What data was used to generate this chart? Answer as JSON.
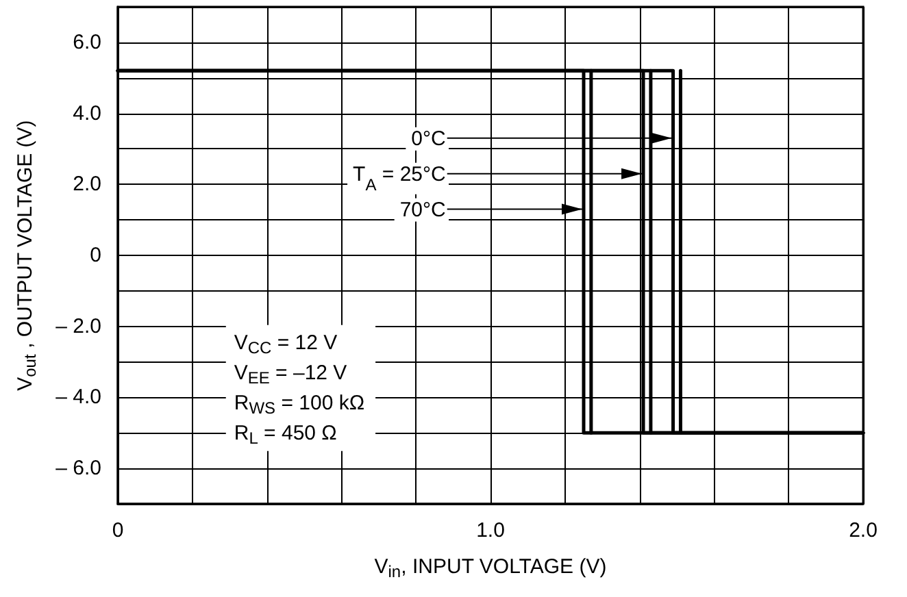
{
  "chart_data": {
    "type": "line",
    "xlabel": "V$_{in}$, INPUT VOLTAGE (V)",
    "ylabel": "V$_{out}$ , OUTPUT VOLTAGE (V)",
    "xlim": [
      0,
      2.0
    ],
    "ylim": [
      -7,
      7
    ],
    "xticks": [
      0,
      {
        "value": 0.2,
        "label": null
      },
      {
        "value": 0.4,
        "label": null
      },
      {
        "value": 0.6,
        "label": null
      },
      {
        "value": 0.8,
        "label": null
      },
      {
        "value": 1.0,
        "label": "1.0"
      },
      {
        "value": 1.2,
        "label": null
      },
      {
        "value": 1.4,
        "label": null
      },
      {
        "value": 1.6,
        "label": null
      },
      {
        "value": 1.8,
        "label": null
      },
      {
        "value": 2.0,
        "label": "2.0"
      }
    ],
    "yticks": [
      {
        "value": -6,
        "label": "– 6.0"
      },
      {
        "value": -5,
        "label": null
      },
      {
        "value": -4,
        "label": "– 4.0"
      },
      {
        "value": -3,
        "label": null
      },
      {
        "value": -2,
        "label": "– 2.0"
      },
      {
        "value": -1,
        "label": null
      },
      0,
      {
        "value": 1,
        "label": null
      },
      {
        "value": 2,
        "label": "2.0"
      },
      {
        "value": 3,
        "label": null
      },
      {
        "value": 4,
        "label": "4.0"
      },
      {
        "value": 5,
        "label": null
      },
      {
        "value": 6,
        "label": "6.0"
      }
    ],
    "grid": true,
    "marker": "none",
    "line_style": "solid",
    "series": [
      {
        "color": "#000000",
        "x": [
          0,
          1.49,
          1.49,
          2.0
        ],
        "values": [
          5.2,
          5.2,
          -5.0,
          -5.0
        ]
      },
      {
        "color": "#000000",
        "x": [
          0,
          1.41,
          1.41,
          2.0
        ],
        "values": [
          5.2,
          5.2,
          -5.0,
          -5.0
        ]
      },
      {
        "color": "#000000",
        "x": [
          0,
          1.25,
          1.25,
          2.0
        ],
        "values": [
          5.2,
          5.2,
          -5.0,
          -5.0
        ]
      },
      {
        "color": "#000000",
        "x": [
          1.51,
          1.51
        ],
        "values": [
          -5.0,
          5.2
        ]
      },
      {
        "color": "#000000",
        "x": [
          1.43,
          1.43
        ],
        "values": [
          -5.0,
          5.2
        ]
      },
      {
        "color": "#000000",
        "x": [
          1.27,
          1.27
        ],
        "values": [
          -5.0,
          5.2
        ]
      }
    ],
    "annotations": [
      {
        "text": "0°C",
        "x": 1.49,
        "y": 3.3
      },
      {
        "text": "T$_{A}$ = 25°C",
        "x": 1.41,
        "y": 2.3
      },
      {
        "text": "70°C",
        "x": 1.25,
        "y": 1.3
      },
      "V$_{CC}$ = 12 V",
      "V$_{EE}$ = –12 V",
      "R$_{WS}$ = 100 kΩ",
      "R$_{L}$ = 450 Ω"
    ]
  }
}
